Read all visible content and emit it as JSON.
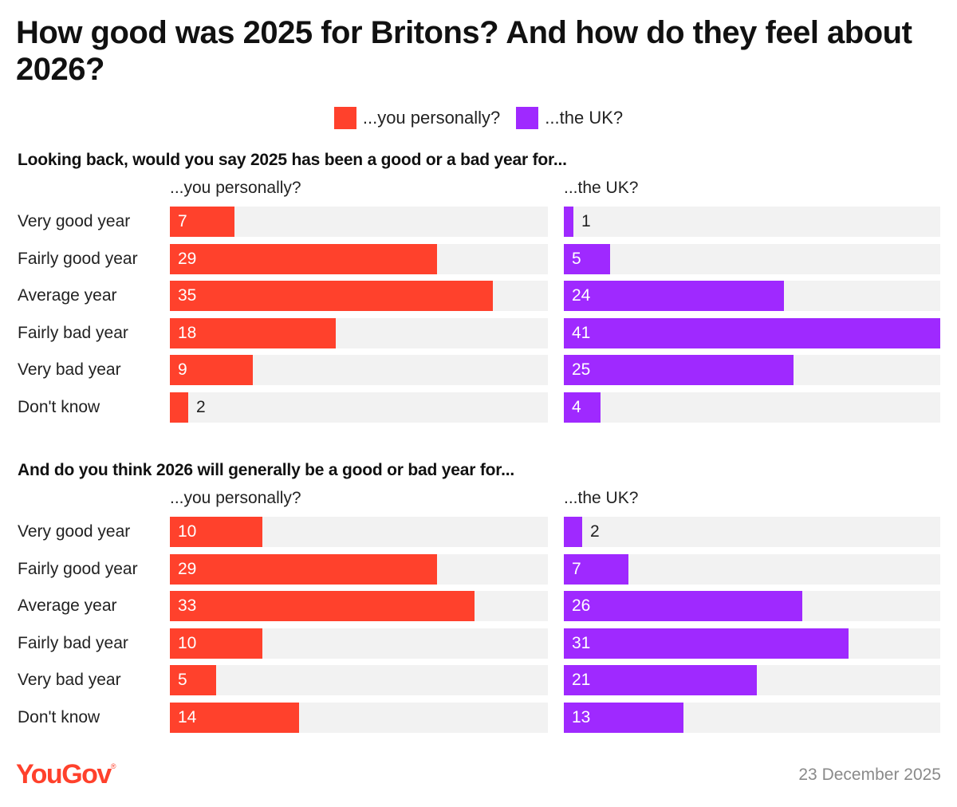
{
  "chart_data": {
    "type": "bar",
    "orientation": "horizontal",
    "title": "How good was 2025 for Britons? And how do they feel about 2026?",
    "legend": [
      {
        "name": "...you personally?",
        "color": "#ff412c"
      },
      {
        "name": "...the UK?",
        "color": "#9f29ff"
      }
    ],
    "max_value": 41,
    "sections": [
      {
        "title": "Looking back, would you say 2025 has been a good or a bad year for...",
        "categories": [
          "Very good year",
          "Fairly good year",
          "Average year",
          "Fairly bad year",
          "Very bad year",
          "Don't know"
        ],
        "series": [
          {
            "name": "...you personally?",
            "color": "#ff412c",
            "values": [
              7,
              29,
              35,
              18,
              9,
              2
            ]
          },
          {
            "name": "...the UK?",
            "color": "#9f29ff",
            "values": [
              1,
              5,
              24,
              41,
              25,
              4
            ]
          }
        ]
      },
      {
        "title": "And do you think 2026 will generally be a good or bad year for...",
        "categories": [
          "Very good year",
          "Fairly good year",
          "Average year",
          "Fairly bad year",
          "Very bad year",
          "Don't know"
        ],
        "series": [
          {
            "name": "...you personally?",
            "color": "#ff412c",
            "values": [
              10,
              29,
              33,
              10,
              5,
              14
            ]
          },
          {
            "name": "...the UK?",
            "color": "#9f29ff",
            "values": [
              2,
              7,
              26,
              31,
              21,
              13
            ]
          }
        ]
      }
    ]
  },
  "footer": {
    "brand": "YouGov",
    "brand_mark": "®",
    "brand_color": "#ff412c",
    "date": "23 December 2025"
  }
}
